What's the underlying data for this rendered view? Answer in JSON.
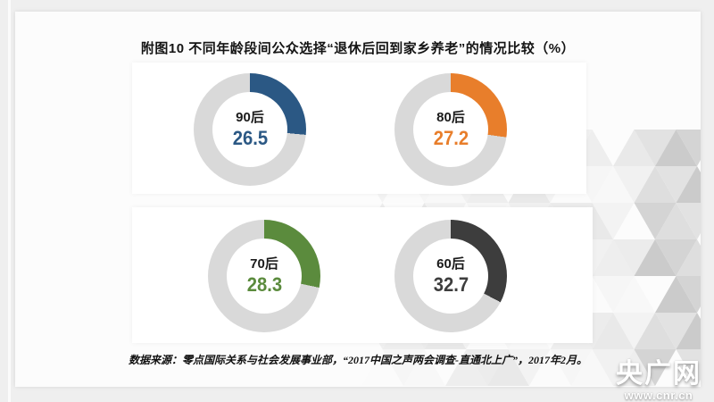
{
  "title": "附图10 不同年龄段间公众选择“退休后回到家乡养老”的情况比较（%）",
  "chart_data": {
    "type": "pie",
    "subtype": "donut-grid-2x2",
    "title": "附图10 不同年龄段间公众选择“退休后回到家乡养老”的情况比较（%）",
    "unit": "%",
    "legend_position": "center-labels",
    "track_color": "#D9D9D9",
    "series": [
      {
        "label": "90后",
        "value": 26.5,
        "color": "#2B5884"
      },
      {
        "label": "80后",
        "value": 27.2,
        "color": "#E87E2B"
      },
      {
        "label": "70后",
        "value": 28.3,
        "color": "#5B8B3D"
      },
      {
        "label": "60后",
        "value": 32.7,
        "color": "#3D3D3D"
      }
    ]
  },
  "source_note": "数据来源：零点国际关系与社会发展事业部，“2017中国之声两会调查-直通北上广”，2017年2月。",
  "watermark": {
    "name": "央广网",
    "url_text": "www.cnr.cn"
  }
}
